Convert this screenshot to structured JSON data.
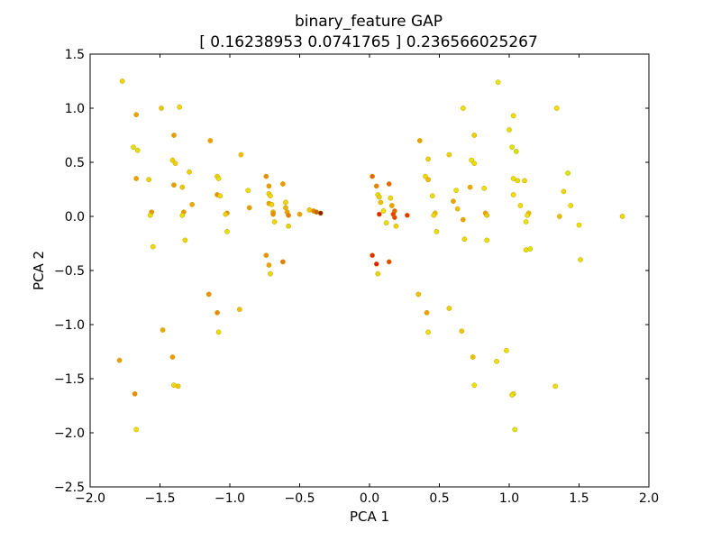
{
  "chart_data": {
    "type": "scatter",
    "title": "binary_feature GAP",
    "subtitle": "[ 0.16238953  0.0741765 ] 0.236566025267",
    "xlabel": "PCA 1",
    "ylabel": "PCA 2",
    "xlim": [
      -2.0,
      2.0
    ],
    "ylim": [
      -2.5,
      1.5
    ],
    "xticks": [
      -2.0,
      -1.5,
      -1.0,
      -0.5,
      0.0,
      0.5,
      1.0,
      1.5,
      2.0
    ],
    "yticks": [
      -2.5,
      -2.0,
      -1.5,
      -1.0,
      -0.5,
      0.0,
      0.5,
      1.0,
      1.5
    ],
    "xtick_labels": [
      "−2.0",
      "−1.5",
      "−1.0",
      "−0.5",
      "0.0",
      "0.5",
      "1.0",
      "1.5",
      "2.0"
    ],
    "ytick_labels": [
      "−2.5",
      "−2.0",
      "−1.5",
      "−1.0",
      "−0.5",
      "0.0",
      "0.5",
      "1.0",
      "1.5"
    ],
    "grid": false,
    "points": [
      {
        "x": -1.77,
        "y": 1.25,
        "c": "#f0d400"
      },
      {
        "x": -1.67,
        "y": 0.94,
        "c": "#f0a000"
      },
      {
        "x": -1.69,
        "y": 0.64,
        "c": "#e8e000"
      },
      {
        "x": -1.66,
        "y": 0.61,
        "c": "#e0e000"
      },
      {
        "x": -1.67,
        "y": 0.35,
        "c": "#f0a000"
      },
      {
        "x": -1.58,
        "y": 0.34,
        "c": "#f0d000"
      },
      {
        "x": -1.56,
        "y": 0.04,
        "c": "#f09000"
      },
      {
        "x": -1.57,
        "y": 0.01,
        "c": "#e8e000"
      },
      {
        "x": -1.55,
        "y": -0.28,
        "c": "#f0d800"
      },
      {
        "x": -1.49,
        "y": 1.0,
        "c": "#f0c800"
      },
      {
        "x": -1.4,
        "y": 0.75,
        "c": "#f09800"
      },
      {
        "x": -1.41,
        "y": 0.52,
        "c": "#f0d400"
      },
      {
        "x": -1.39,
        "y": 0.49,
        "c": "#f0d000"
      },
      {
        "x": -1.4,
        "y": 0.29,
        "c": "#f09800"
      },
      {
        "x": -1.36,
        "y": 1.01,
        "c": "#f0d800"
      },
      {
        "x": -1.34,
        "y": 0.27,
        "c": "#f0c800"
      },
      {
        "x": -1.33,
        "y": 0.04,
        "c": "#f09800"
      },
      {
        "x": -1.34,
        "y": 0.01,
        "c": "#e8e000"
      },
      {
        "x": -1.32,
        "y": -0.22,
        "c": "#f0d800"
      },
      {
        "x": -1.29,
        "y": 0.41,
        "c": "#f0d000"
      },
      {
        "x": -1.27,
        "y": 0.11,
        "c": "#f0a800"
      },
      {
        "x": -1.14,
        "y": 0.7,
        "c": "#f0a000"
      },
      {
        "x": -1.09,
        "y": 0.37,
        "c": "#f0d000"
      },
      {
        "x": -1.08,
        "y": 0.35,
        "c": "#e8e000"
      },
      {
        "x": -1.09,
        "y": 0.2,
        "c": "#f09000"
      },
      {
        "x": -1.07,
        "y": 0.19,
        "c": "#f0d800"
      },
      {
        "x": -1.02,
        "y": 0.03,
        "c": "#f08c00"
      },
      {
        "x": -1.03,
        "y": 0.02,
        "c": "#f0d000"
      },
      {
        "x": -1.02,
        "y": -0.14,
        "c": "#e8e000"
      },
      {
        "x": -0.92,
        "y": 0.57,
        "c": "#f0c000"
      },
      {
        "x": -0.87,
        "y": 0.24,
        "c": "#f0e000"
      },
      {
        "x": -0.86,
        "y": 0.08,
        "c": "#f09800"
      },
      {
        "x": -0.74,
        "y": 0.37,
        "c": "#f08c00"
      },
      {
        "x": -0.72,
        "y": 0.28,
        "c": "#f09800"
      },
      {
        "x": -0.72,
        "y": 0.21,
        "c": "#f0d000"
      },
      {
        "x": -0.71,
        "y": 0.19,
        "c": "#f0d800"
      },
      {
        "x": -0.72,
        "y": 0.12,
        "c": "#f0a000"
      },
      {
        "x": -0.7,
        "y": 0.11,
        "c": "#f0d400"
      },
      {
        "x": -0.69,
        "y": 0.04,
        "c": "#f0a800"
      },
      {
        "x": -0.69,
        "y": 0.02,
        "c": "#f08800"
      },
      {
        "x": -0.68,
        "y": -0.05,
        "c": "#f0d800"
      },
      {
        "x": -0.62,
        "y": 0.3,
        "c": "#f09800"
      },
      {
        "x": -0.6,
        "y": 0.13,
        "c": "#f0d800"
      },
      {
        "x": -0.6,
        "y": 0.08,
        "c": "#f0b000"
      },
      {
        "x": -0.59,
        "y": 0.04,
        "c": "#f0a000"
      },
      {
        "x": -0.58,
        "y": 0.01,
        "c": "#f07800"
      },
      {
        "x": -0.58,
        "y": -0.09,
        "c": "#f0d000"
      },
      {
        "x": -0.5,
        "y": 0.02,
        "c": "#f0a000"
      },
      {
        "x": -0.43,
        "y": 0.06,
        "c": "#f0c800"
      },
      {
        "x": -0.4,
        "y": 0.05,
        "c": "#f08000"
      },
      {
        "x": -0.38,
        "y": 0.04,
        "c": "#d06000"
      },
      {
        "x": -0.35,
        "y": 0.03,
        "c": "#8a2000"
      },
      {
        "x": -0.74,
        "y": -0.36,
        "c": "#f09000"
      },
      {
        "x": -0.72,
        "y": -0.45,
        "c": "#f0a000"
      },
      {
        "x": -0.71,
        "y": -0.53,
        "c": "#f0d800"
      },
      {
        "x": -0.62,
        "y": -0.42,
        "c": "#f07800"
      },
      {
        "x": -1.15,
        "y": -0.72,
        "c": "#f09000"
      },
      {
        "x": -1.09,
        "y": -0.89,
        "c": "#f08800"
      },
      {
        "x": -0.93,
        "y": -0.86,
        "c": "#f0c000"
      },
      {
        "x": -1.08,
        "y": -1.07,
        "c": "#e8e000"
      },
      {
        "x": -1.48,
        "y": -1.05,
        "c": "#f0a800"
      },
      {
        "x": -1.41,
        "y": -1.3,
        "c": "#f09800"
      },
      {
        "x": -1.4,
        "y": -1.56,
        "c": "#f0d800"
      },
      {
        "x": -1.37,
        "y": -1.57,
        "c": "#f0c800"
      },
      {
        "x": -1.79,
        "y": -1.33,
        "c": "#f0a000"
      },
      {
        "x": -1.68,
        "y": -1.64,
        "c": "#f08800"
      },
      {
        "x": -1.67,
        "y": -1.97,
        "c": "#f0e000"
      },
      {
        "x": 0.02,
        "y": 0.37,
        "c": "#f06000"
      },
      {
        "x": 0.05,
        "y": 0.28,
        "c": "#f08000"
      },
      {
        "x": 0.14,
        "y": 0.3,
        "c": "#f06000"
      },
      {
        "x": 0.06,
        "y": 0.2,
        "c": "#e8e000"
      },
      {
        "x": 0.07,
        "y": 0.18,
        "c": "#f0d000"
      },
      {
        "x": 0.08,
        "y": 0.13,
        "c": "#f0c000"
      },
      {
        "x": 0.1,
        "y": 0.05,
        "c": "#f0e000"
      },
      {
        "x": 0.07,
        "y": 0.02,
        "c": "#f02000"
      },
      {
        "x": 0.15,
        "y": 0.17,
        "c": "#f0d800"
      },
      {
        "x": 0.16,
        "y": 0.1,
        "c": "#f0a000"
      },
      {
        "x": 0.18,
        "y": 0.05,
        "c": "#f06000"
      },
      {
        "x": 0.17,
        "y": 0.02,
        "c": "#f03800"
      },
      {
        "x": 0.18,
        "y": -0.01,
        "c": "#f04000"
      },
      {
        "x": 0.12,
        "y": -0.06,
        "c": "#e8e000"
      },
      {
        "x": 0.19,
        "y": -0.09,
        "c": "#f0d400"
      },
      {
        "x": 0.27,
        "y": 0.01,
        "c": "#f03000"
      },
      {
        "x": 0.02,
        "y": -0.36,
        "c": "#f02800"
      },
      {
        "x": 0.05,
        "y": -0.44,
        "c": "#f01800"
      },
      {
        "x": 0.14,
        "y": -0.42,
        "c": "#f04000"
      },
      {
        "x": 0.06,
        "y": -0.53,
        "c": "#e8d800"
      },
      {
        "x": 0.36,
        "y": 0.7,
        "c": "#f0a000"
      },
      {
        "x": 0.42,
        "y": 0.53,
        "c": "#f0d000"
      },
      {
        "x": 0.4,
        "y": 0.37,
        "c": "#f0d800"
      },
      {
        "x": 0.42,
        "y": 0.34,
        "c": "#f0b800"
      },
      {
        "x": 0.45,
        "y": 0.19,
        "c": "#e8e000"
      },
      {
        "x": 0.47,
        "y": 0.03,
        "c": "#f0c000"
      },
      {
        "x": 0.46,
        "y": 0.01,
        "c": "#f0d800"
      },
      {
        "x": 0.48,
        "y": -0.14,
        "c": "#e8e000"
      },
      {
        "x": 0.57,
        "y": 0.57,
        "c": "#f0d000"
      },
      {
        "x": 0.62,
        "y": 0.24,
        "c": "#f0e000"
      },
      {
        "x": 0.6,
        "y": 0.14,
        "c": "#f0a000"
      },
      {
        "x": 0.63,
        "y": 0.07,
        "c": "#f0c000"
      },
      {
        "x": 0.67,
        "y": -0.03,
        "c": "#f0a000"
      },
      {
        "x": 0.68,
        "y": -0.21,
        "c": "#f0d800"
      },
      {
        "x": 0.67,
        "y": 1.0,
        "c": "#f0e000"
      },
      {
        "x": 0.72,
        "y": 0.27,
        "c": "#f0a800"
      },
      {
        "x": 0.73,
        "y": 0.52,
        "c": "#f0e000"
      },
      {
        "x": 0.75,
        "y": 0.49,
        "c": "#e8e000"
      },
      {
        "x": 0.75,
        "y": 0.75,
        "c": "#f0d000"
      },
      {
        "x": 0.82,
        "y": 0.26,
        "c": "#f0e000"
      },
      {
        "x": 0.83,
        "y": 0.03,
        "c": "#f0a000"
      },
      {
        "x": 0.84,
        "y": 0.01,
        "c": "#f0c800"
      },
      {
        "x": 0.84,
        "y": -0.22,
        "c": "#f0e000"
      },
      {
        "x": 0.92,
        "y": 1.24,
        "c": "#e0e800"
      },
      {
        "x": 1.0,
        "y": 0.8,
        "c": "#e8e000"
      },
      {
        "x": 1.02,
        "y": 0.64,
        "c": "#e0e800"
      },
      {
        "x": 1.03,
        "y": 0.93,
        "c": "#f0e000"
      },
      {
        "x": 1.05,
        "y": 0.6,
        "c": "#d0e800"
      },
      {
        "x": 1.03,
        "y": 0.35,
        "c": "#f0e000"
      },
      {
        "x": 1.06,
        "y": 0.33,
        "c": "#e8e000"
      },
      {
        "x": 1.03,
        "y": 0.2,
        "c": "#f0e000"
      },
      {
        "x": 1.08,
        "y": 0.1,
        "c": "#f0e000"
      },
      {
        "x": 1.11,
        "y": 0.33,
        "c": "#f0d800"
      },
      {
        "x": 1.14,
        "y": 0.03,
        "c": "#f0c000"
      },
      {
        "x": 1.13,
        "y": 0.01,
        "c": "#f0e000"
      },
      {
        "x": 1.12,
        "y": -0.05,
        "c": "#e8e800"
      },
      {
        "x": 1.12,
        "y": -0.31,
        "c": "#e8e000"
      },
      {
        "x": 1.15,
        "y": -0.3,
        "c": "#e0e800"
      },
      {
        "x": 1.34,
        "y": 1.0,
        "c": "#f0e000"
      },
      {
        "x": 1.36,
        "y": 0.0,
        "c": "#f0c000"
      },
      {
        "x": 1.39,
        "y": 0.23,
        "c": "#f0d800"
      },
      {
        "x": 1.42,
        "y": 0.4,
        "c": "#d8e800"
      },
      {
        "x": 1.44,
        "y": 0.1,
        "c": "#f0e000"
      },
      {
        "x": 1.5,
        "y": -0.08,
        "c": "#f0e000"
      },
      {
        "x": 1.51,
        "y": -0.4,
        "c": "#e8e000"
      },
      {
        "x": 1.81,
        "y": 0.0,
        "c": "#f0d800"
      },
      {
        "x": 0.35,
        "y": -0.72,
        "c": "#f0c000"
      },
      {
        "x": 0.41,
        "y": -0.89,
        "c": "#f0a000"
      },
      {
        "x": 0.42,
        "y": -1.07,
        "c": "#f0e000"
      },
      {
        "x": 0.57,
        "y": -0.85,
        "c": "#f0d000"
      },
      {
        "x": 0.66,
        "y": -1.06,
        "c": "#f0c800"
      },
      {
        "x": 0.74,
        "y": -1.3,
        "c": "#f0c000"
      },
      {
        "x": 0.75,
        "y": -1.56,
        "c": "#f0e000"
      },
      {
        "x": 0.91,
        "y": -1.34,
        "c": "#f0e000"
      },
      {
        "x": 0.98,
        "y": -1.24,
        "c": "#f0e000"
      },
      {
        "x": 1.03,
        "y": -1.64,
        "c": "#f0d800"
      },
      {
        "x": 1.02,
        "y": -1.65,
        "c": "#e8e000"
      },
      {
        "x": 1.04,
        "y": -1.97,
        "c": "#e0e800"
      },
      {
        "x": 1.33,
        "y": -1.57,
        "c": "#f0e000"
      }
    ]
  }
}
